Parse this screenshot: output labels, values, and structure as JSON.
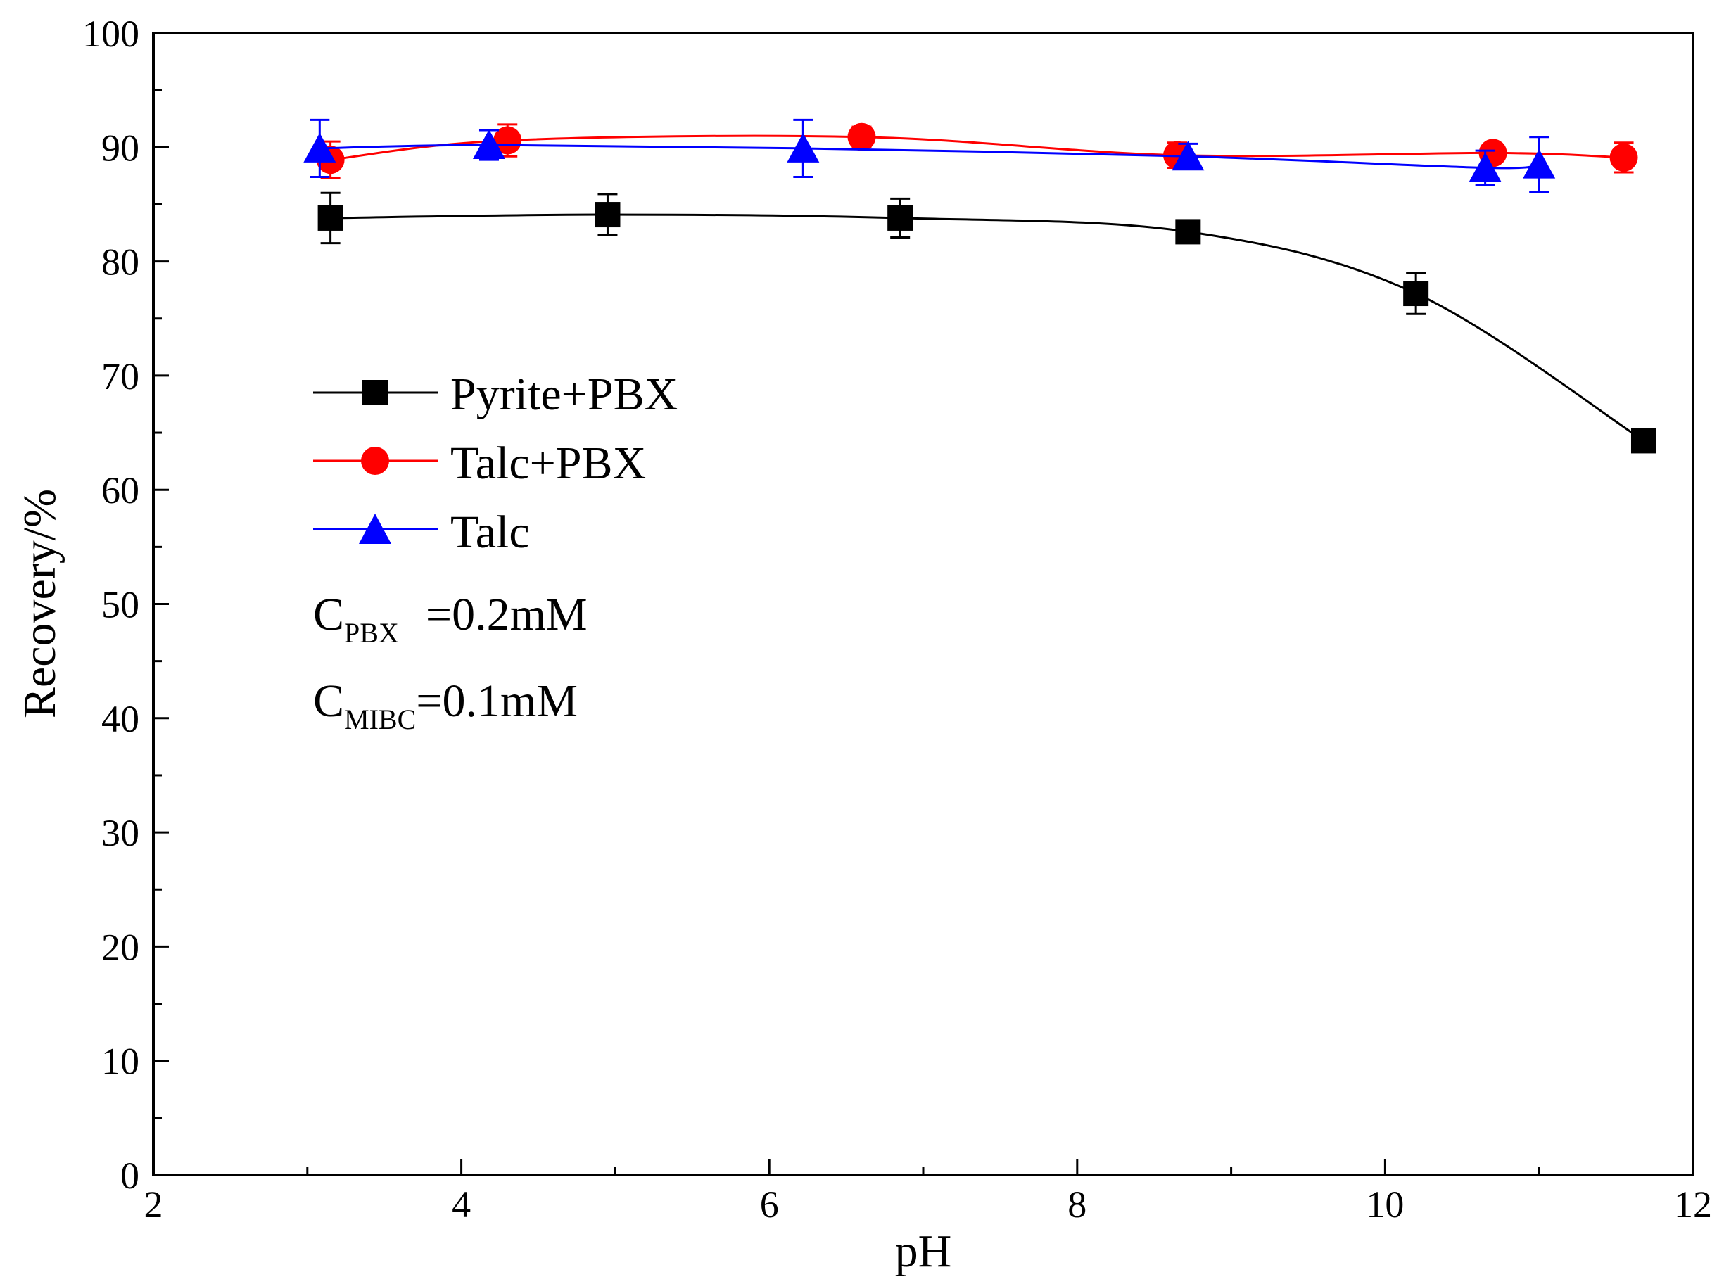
{
  "chart_data": {
    "type": "line",
    "xlabel": "pH",
    "ylabel": "Recovery/%",
    "xlim": [
      2,
      12
    ],
    "ylim": [
      0,
      100
    ],
    "xticks": [
      2,
      4,
      6,
      8,
      10,
      12
    ],
    "yticks": [
      0,
      10,
      20,
      30,
      40,
      50,
      60,
      70,
      80,
      90,
      100
    ],
    "x_minor_step": 1,
    "y_minor_step": 5,
    "grid": false,
    "legend_position": "center-left",
    "series": [
      {
        "name": "Pyrite+PBX",
        "color": "#000000",
        "marker": "square",
        "x": [
          3.15,
          4.95,
          6.85,
          8.72,
          10.2,
          11.68
        ],
        "y": [
          83.8,
          84.1,
          83.8,
          82.6,
          77.2,
          64.3
        ],
        "err": [
          2.2,
          1.8,
          1.7,
          0.9,
          1.8,
          0.8
        ]
      },
      {
        "name": "Talc+PBX",
        "color": "#ff0000",
        "marker": "circle",
        "x": [
          3.15,
          4.3,
          6.6,
          8.65,
          10.7,
          11.55
        ],
        "y": [
          88.9,
          90.6,
          90.9,
          89.3,
          89.5,
          89.1
        ],
        "err": [
          1.6,
          1.4,
          0.9,
          1.1,
          0.8,
          1.3
        ]
      },
      {
        "name": "Talc",
        "color": "#0000ff",
        "marker": "triangle",
        "x": [
          3.08,
          4.18,
          6.22,
          8.72,
          10.65,
          11.0
        ],
        "y": [
          89.9,
          90.2,
          89.9,
          89.2,
          88.2,
          88.5
        ],
        "err": [
          2.5,
          1.3,
          2.5,
          1.1,
          1.5,
          2.4
        ]
      }
    ],
    "annotations": [
      {
        "main": "C",
        "sub": "PBX",
        "rest": "=0.2mM"
      },
      {
        "main": "C",
        "sub": "MIBC",
        "rest": "=0.1mM"
      }
    ]
  }
}
